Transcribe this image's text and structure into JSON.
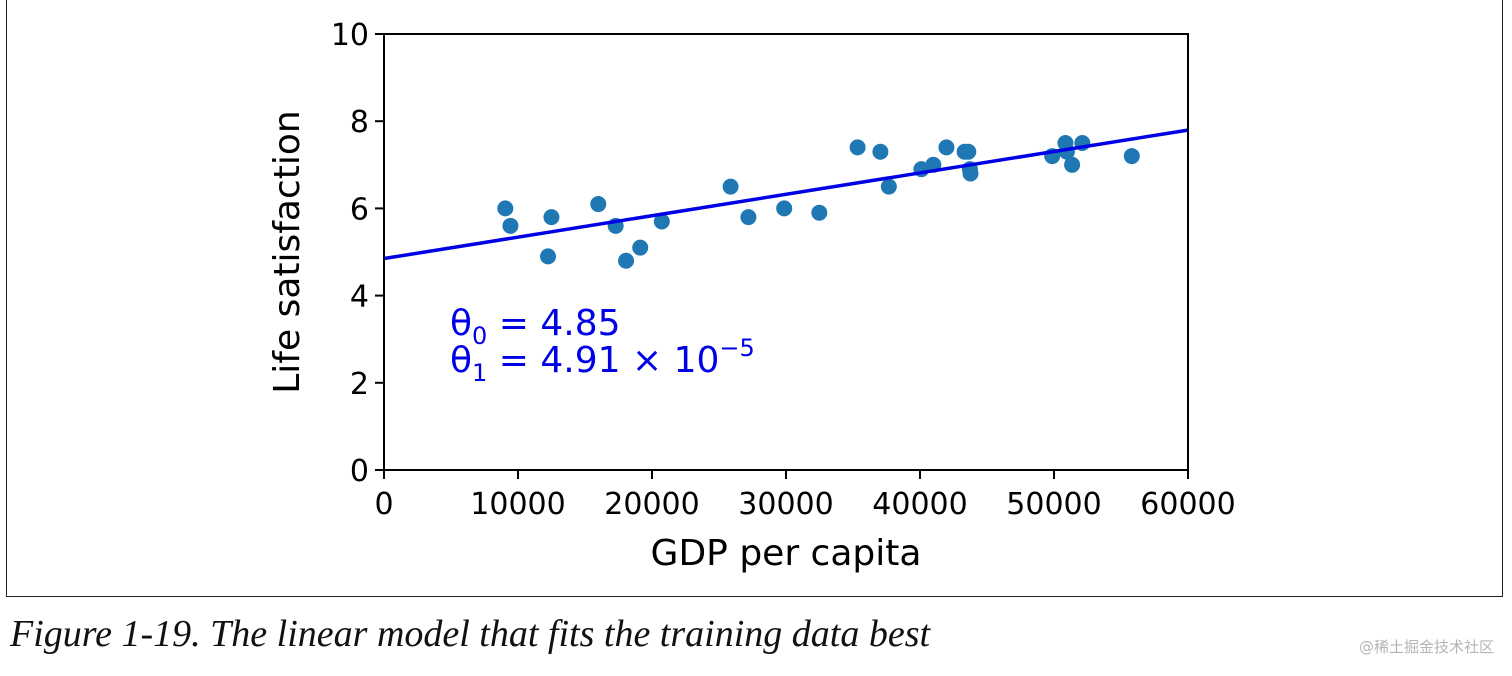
{
  "chart_data": {
    "type": "scatter",
    "xlabel": "GDP per capita",
    "ylabel": "Life satisfaction",
    "xlim": [
      0,
      60000
    ],
    "ylim": [
      0,
      10
    ],
    "x_ticks": [
      "0",
      "10000",
      "20000",
      "30000",
      "40000",
      "50000",
      "60000"
    ],
    "x_tick_values": [
      0,
      10000,
      20000,
      30000,
      40000,
      50000,
      60000
    ],
    "y_ticks": [
      "0",
      "2",
      "4",
      "6",
      "8",
      "10"
    ],
    "y_tick_values": [
      0,
      2,
      4,
      6,
      8,
      10
    ],
    "grid": false,
    "series": [
      {
        "name": "training data",
        "type": "scatter",
        "color": "#1f77b4",
        "points": [
          [
            9054,
            6.0
          ],
          [
            9437,
            5.6
          ],
          [
            12240,
            4.9
          ],
          [
            12495,
            5.8
          ],
          [
            15991,
            6.1
          ],
          [
            17288,
            5.6
          ],
          [
            18064,
            4.8
          ],
          [
            19121,
            5.1
          ],
          [
            20732,
            5.7
          ],
          [
            25864,
            6.5
          ],
          [
            27195,
            5.8
          ],
          [
            29866,
            6.0
          ],
          [
            32485,
            5.9
          ],
          [
            35343,
            7.4
          ],
          [
            37044,
            7.3
          ],
          [
            37675,
            6.5
          ],
          [
            40106,
            6.9
          ],
          [
            40996,
            7.0
          ],
          [
            41973,
            7.4
          ],
          [
            43331,
            7.3
          ],
          [
            43603,
            7.3
          ],
          [
            43724,
            6.9
          ],
          [
            43770,
            6.8
          ],
          [
            49866,
            7.2
          ],
          [
            50854,
            7.5
          ],
          [
            50962,
            7.3
          ],
          [
            51350,
            7.0
          ],
          [
            52114,
            7.5
          ],
          [
            55805,
            7.2
          ]
        ]
      },
      {
        "name": "linear model",
        "type": "line",
        "color": "#0000e6",
        "theta0": 4.85,
        "theta1": 4.91e-05
      }
    ],
    "annotations": {
      "theta0": {
        "symbol": "θ",
        "sub": "0",
        "text": " = 4.85"
      },
      "theta1": {
        "symbol": "θ",
        "sub": "1",
        "text": " = 4.91 × 10",
        "sup": "−5"
      }
    }
  },
  "caption": "Figure 1-19. The linear model that fits the training data best",
  "watermark": "@稀土掘金技术社区"
}
